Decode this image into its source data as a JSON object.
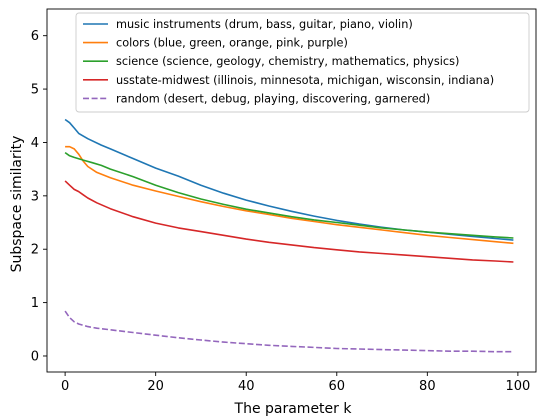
{
  "chart_data": {
    "type": "line",
    "title": "",
    "xlabel": "The parameter k",
    "ylabel": "Subspace similarity",
    "xlim": [
      -4,
      104
    ],
    "ylim": [
      -0.3,
      6.5
    ],
    "xticks": [
      0,
      20,
      40,
      60,
      80,
      100
    ],
    "yticks": [
      0,
      1,
      2,
      3,
      4,
      5,
      6
    ],
    "grid": false,
    "legend_position": "top-right",
    "series": [
      {
        "name": "music instruments (drum, bass, guitar, piano, violin)",
        "color": "#1f77b4",
        "dash": "solid",
        "x": [
          0,
          1,
          2,
          3,
          5,
          8,
          10,
          15,
          20,
          25,
          30,
          35,
          40,
          45,
          50,
          55,
          60,
          65,
          70,
          75,
          80,
          85,
          90,
          95,
          99
        ],
        "y": [
          4.43,
          4.37,
          4.27,
          4.17,
          4.07,
          3.95,
          3.88,
          3.7,
          3.52,
          3.37,
          3.2,
          3.05,
          2.92,
          2.81,
          2.71,
          2.62,
          2.54,
          2.47,
          2.41,
          2.36,
          2.32,
          2.28,
          2.24,
          2.2,
          2.17
        ]
      },
      {
        "name": "colors (blue, green, orange, pink, purple)",
        "color": "#ff7f0e",
        "dash": "solid",
        "x": [
          0,
          1,
          2,
          3,
          4,
          5,
          7,
          10,
          15,
          20,
          25,
          30,
          35,
          40,
          45,
          50,
          55,
          60,
          65,
          70,
          75,
          80,
          85,
          90,
          95,
          99
        ],
        "y": [
          3.92,
          3.92,
          3.88,
          3.78,
          3.65,
          3.55,
          3.44,
          3.34,
          3.2,
          3.09,
          2.99,
          2.89,
          2.8,
          2.72,
          2.65,
          2.58,
          2.52,
          2.46,
          2.41,
          2.36,
          2.31,
          2.26,
          2.22,
          2.18,
          2.14,
          2.11
        ]
      },
      {
        "name": "science (science, geology, chemistry, mathematics, physics)",
        "color": "#2ca02c",
        "dash": "solid",
        "x": [
          0,
          1,
          2,
          4,
          6,
          8,
          10,
          15,
          20,
          25,
          30,
          35,
          40,
          45,
          50,
          55,
          60,
          65,
          70,
          75,
          80,
          85,
          90,
          95,
          99
        ],
        "y": [
          3.81,
          3.75,
          3.72,
          3.67,
          3.62,
          3.57,
          3.5,
          3.36,
          3.2,
          3.06,
          2.94,
          2.84,
          2.75,
          2.68,
          2.61,
          2.55,
          2.5,
          2.45,
          2.4,
          2.36,
          2.32,
          2.29,
          2.26,
          2.23,
          2.21
        ]
      },
      {
        "name": "usstate-midwest (illinois, minnesota, michigan, wisconsin, indiana)",
        "color": "#d62728",
        "dash": "solid",
        "x": [
          0,
          1,
          2,
          3,
          4,
          5,
          7,
          10,
          15,
          20,
          25,
          30,
          35,
          40,
          45,
          50,
          55,
          60,
          65,
          70,
          75,
          80,
          85,
          90,
          95,
          99
        ],
        "y": [
          3.28,
          3.2,
          3.12,
          3.08,
          3.02,
          2.96,
          2.87,
          2.76,
          2.61,
          2.49,
          2.4,
          2.33,
          2.26,
          2.19,
          2.13,
          2.08,
          2.03,
          1.99,
          1.95,
          1.92,
          1.89,
          1.86,
          1.83,
          1.8,
          1.78,
          1.76
        ]
      },
      {
        "name": "random (desert, debug, playing, discovering, garnered)",
        "color": "#9467bd",
        "dash": "dashed",
        "x": [
          0,
          1,
          2,
          3,
          5,
          7,
          10,
          15,
          20,
          25,
          30,
          35,
          40,
          45,
          50,
          55,
          60,
          65,
          70,
          75,
          80,
          85,
          90,
          95,
          99
        ],
        "y": [
          0.84,
          0.72,
          0.64,
          0.6,
          0.55,
          0.52,
          0.49,
          0.44,
          0.39,
          0.34,
          0.3,
          0.26,
          0.23,
          0.2,
          0.18,
          0.16,
          0.14,
          0.13,
          0.12,
          0.11,
          0.1,
          0.09,
          0.09,
          0.08,
          0.08
        ]
      }
    ]
  }
}
